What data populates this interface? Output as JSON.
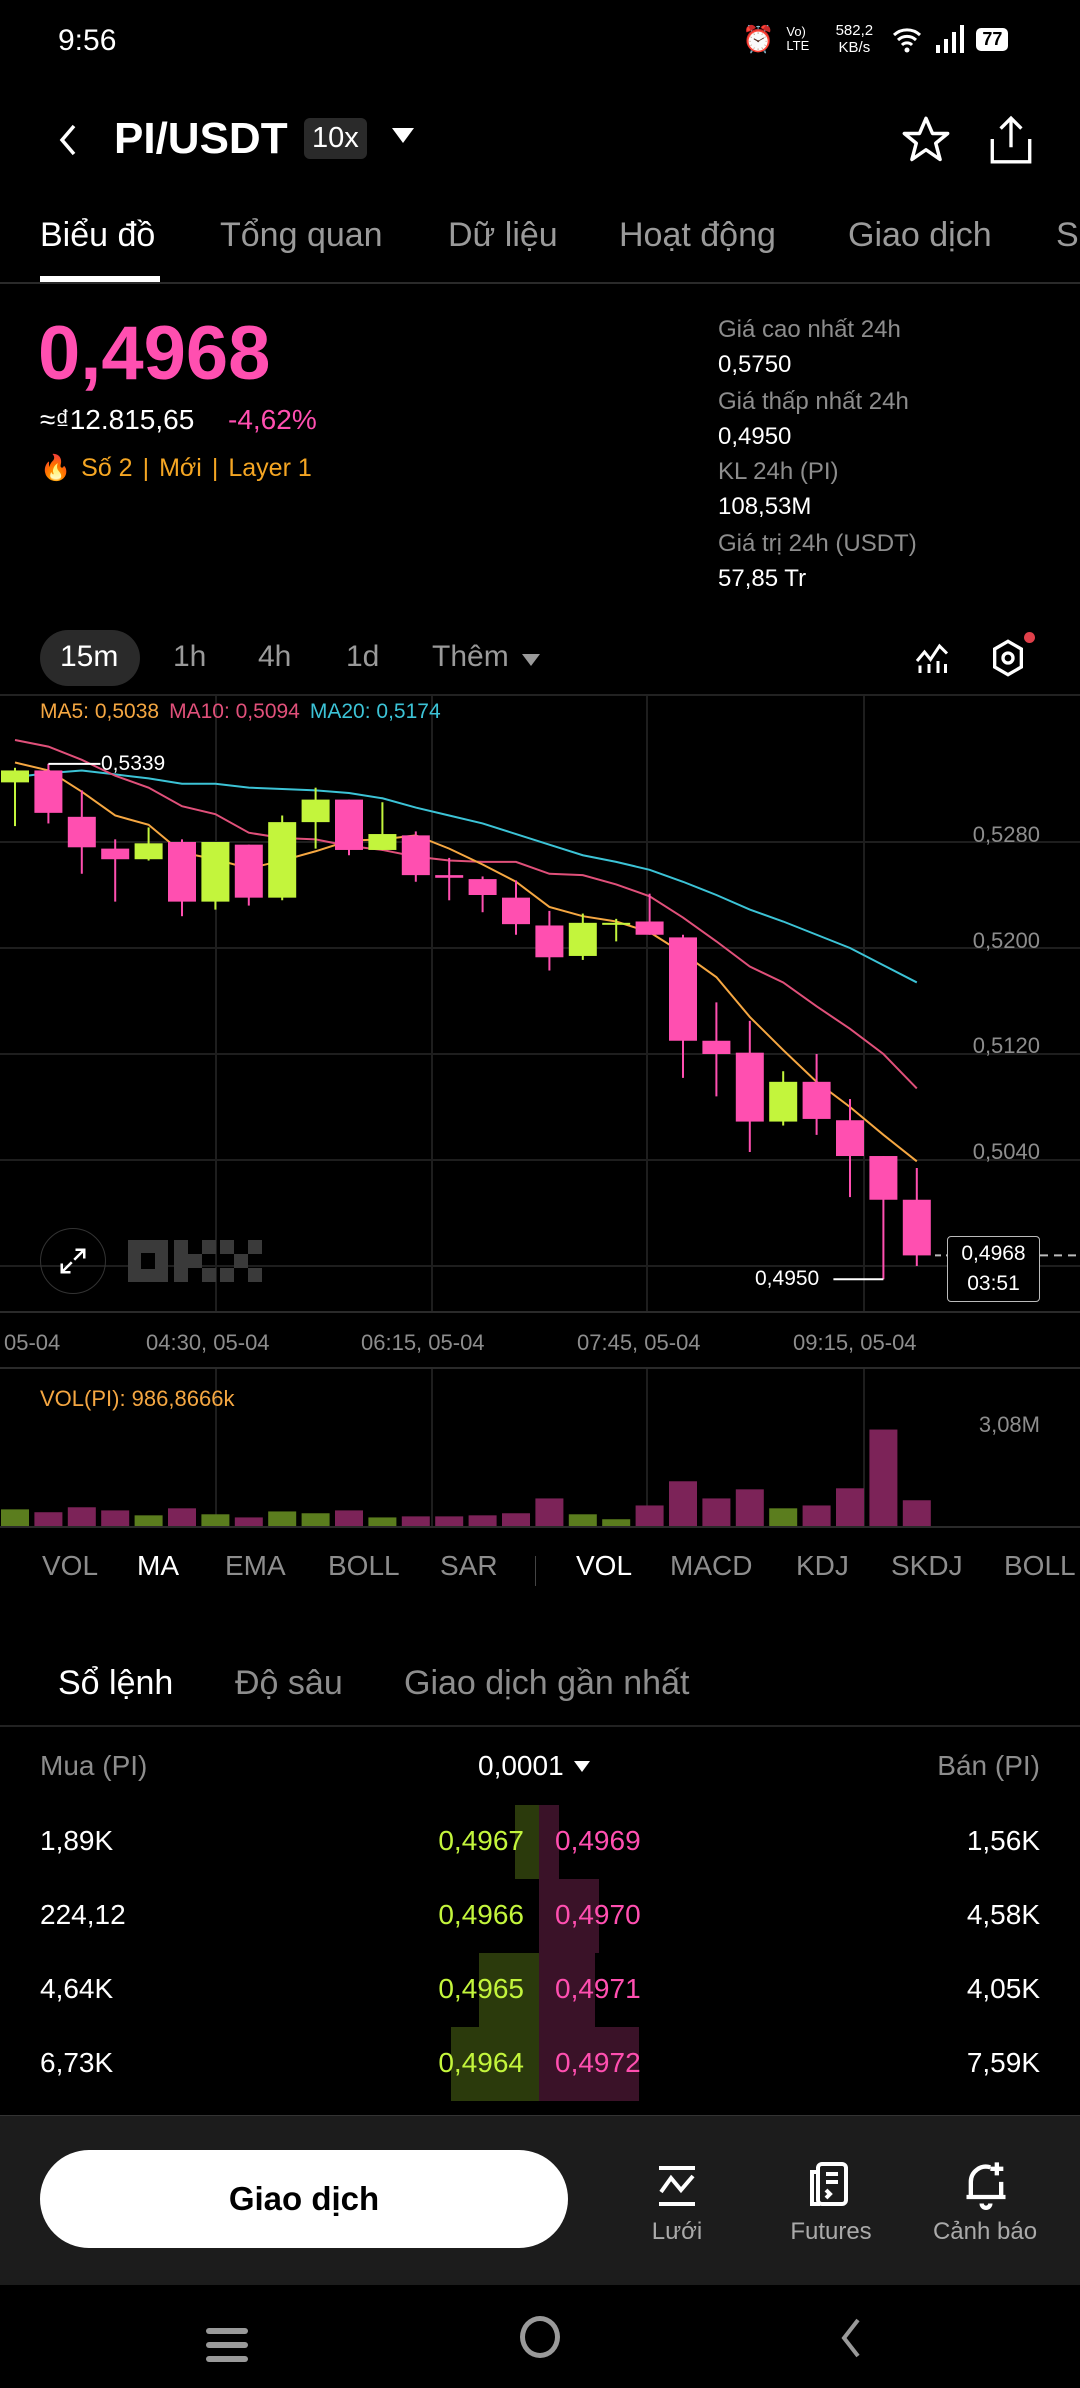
{
  "status_bar": {
    "time": "9:56",
    "net_speed": "582,2 KB/s",
    "network": "Vo) LTE",
    "battery": "77"
  },
  "header": {
    "pair": "PI/USDT",
    "leverage": "10x"
  },
  "tabs": [
    "Biểu đồ",
    "Tổng quan",
    "Dữ liệu",
    "Hoạt động",
    "Giao dịch",
    "S"
  ],
  "ticker": {
    "price": "0,4968",
    "fiat": "≈₫12.815,65",
    "change": "-4,62%",
    "tags": [
      "Số 2",
      "Mới",
      "Layer 1"
    ],
    "stats": [
      {
        "label": "Giá cao nhất 24h",
        "value": "0,5750"
      },
      {
        "label": "Giá thấp nhất 24h",
        "value": "0,4950"
      },
      {
        "label": "KL 24h (PI)",
        "value": "108,53M"
      },
      {
        "label": "Giá trị 24h (USDT)",
        "value": "57,85 Tr"
      }
    ]
  },
  "timeframes": {
    "items": [
      "15m",
      "1h",
      "4h",
      "1d"
    ],
    "more": "Thêm",
    "selected": "15m"
  },
  "colors": {
    "up": "#c3f53c",
    "down": "#ff4fb0",
    "ma5": "#f5a742",
    "ma10": "#e0507a",
    "ma20": "#3cc3d6",
    "vol_up": "#5b7d1e",
    "vol_down": "#7c2358"
  },
  "chart_data": {
    "type": "candlestick",
    "interval": "15m",
    "legend": {
      "ma5": "MA5: 0,5038",
      "ma10": "MA10: 0,5094",
      "ma20": "MA20: 0,5174"
    },
    "y_ticks": [
      "0,5280",
      "0,5200",
      "0,5120",
      "0,5040"
    ],
    "y_tick_values": [
      0.528,
      0.52,
      0.512,
      0.504
    ],
    "x_ticks": [
      "05-04",
      "04:30, 05-04",
      "06:15, 05-04",
      "07:45, 05-04",
      "09:15, 05-04"
    ],
    "high_label": "0,5339",
    "low_label": "0,4950",
    "last_price_label": "0,4968",
    "countdown": "03:51",
    "candles": [
      [
        0.5325,
        0.5334,
        0.5336,
        0.5292
      ],
      [
        0.5334,
        0.5302,
        0.5339,
        0.5294
      ],
      [
        0.5299,
        0.5276,
        0.5319,
        0.5256
      ],
      [
        0.5275,
        0.5267,
        0.5282,
        0.5235
      ],
      [
        0.5267,
        0.5279,
        0.5291,
        0.5266
      ],
      [
        0.528,
        0.5235,
        0.5282,
        0.5224
      ],
      [
        0.5235,
        0.528,
        0.528,
        0.5229
      ],
      [
        0.5278,
        0.5238,
        0.5278,
        0.5232
      ],
      [
        0.5238,
        0.5295,
        0.53,
        0.5236
      ],
      [
        0.5295,
        0.5312,
        0.5321,
        0.5275
      ],
      [
        0.5312,
        0.5274,
        0.5312,
        0.527
      ],
      [
        0.5274,
        0.5286,
        0.531,
        0.5274
      ],
      [
        0.5285,
        0.5255,
        0.5288,
        0.525
      ],
      [
        0.5255,
        0.5253,
        0.5268,
        0.5236
      ],
      [
        0.5252,
        0.524,
        0.5254,
        0.5227
      ],
      [
        0.5238,
        0.5218,
        0.5251,
        0.521
      ],
      [
        0.5217,
        0.5193,
        0.5228,
        0.5183
      ],
      [
        0.5194,
        0.5219,
        0.5226,
        0.5191
      ],
      [
        0.5218,
        0.5219,
        0.5222,
        0.5205
      ],
      [
        0.522,
        0.521,
        0.5241,
        0.521
      ],
      [
        0.5208,
        0.513,
        0.521,
        0.5102
      ],
      [
        0.513,
        0.512,
        0.5159,
        0.5088
      ],
      [
        0.5121,
        0.5069,
        0.5145,
        0.5046
      ],
      [
        0.5069,
        0.5099,
        0.5107,
        0.5066
      ],
      [
        0.5099,
        0.5071,
        0.512,
        0.5059
      ],
      [
        0.507,
        0.5043,
        0.5086,
        0.5012
      ],
      [
        0.5043,
        0.501,
        0.5043,
        0.495
      ],
      [
        0.501,
        0.4968,
        0.5034,
        0.496
      ]
    ],
    "ma5": [
      0.534,
      0.5334,
      0.5318,
      0.53,
      0.5293,
      0.5272,
      0.5267,
      0.526,
      0.5266,
      0.5273,
      0.5281,
      0.5282,
      0.5285,
      0.5275,
      0.5263,
      0.525,
      0.5231,
      0.5224,
      0.522,
      0.5212,
      0.5196,
      0.5178,
      0.5148,
      0.5123,
      0.5099,
      0.508,
      0.5059,
      0.5039
    ],
    "ma10": [
      0.5357,
      0.5352,
      0.5342,
      0.533,
      0.5321,
      0.5307,
      0.5301,
      0.5287,
      0.5283,
      0.5282,
      0.5277,
      0.5274,
      0.5269,
      0.5266,
      0.5265,
      0.5265,
      0.5256,
      0.5255,
      0.5248,
      0.5239,
      0.5223,
      0.5205,
      0.5186,
      0.5174,
      0.5156,
      0.5139,
      0.512,
      0.5094
    ],
    "ma20": [
      0.5329,
      0.5332,
      0.5334,
      0.5331,
      0.5328,
      0.5324,
      0.5324,
      0.5321,
      0.532,
      0.5319,
      0.5317,
      0.5313,
      0.5306,
      0.53,
      0.5294,
      0.5286,
      0.5278,
      0.527,
      0.5265,
      0.5259,
      0.525,
      0.524,
      0.5229,
      0.522,
      0.521,
      0.52,
      0.5187,
      0.5174
    ],
    "volume_label": "VOL(PI): 986,8666k",
    "volume_axis_label": "3,08M",
    "volume_m": [
      0.64,
      0.53,
      0.72,
      0.6,
      0.41,
      0.68,
      0.45,
      0.33,
      0.56,
      0.49,
      0.6,
      0.33,
      0.37,
      0.37,
      0.41,
      0.49,
      1.06,
      0.45,
      0.26,
      0.79,
      1.72,
      1.06,
      1.41,
      0.68,
      0.79,
      1.45,
      3.71,
      0.99
    ]
  },
  "indicators": {
    "main": [
      "VOL",
      "MA",
      "EMA",
      "BOLL",
      "SAR"
    ],
    "sub": [
      "VOL",
      "MACD",
      "KDJ",
      "SKDJ",
      "BOLL"
    ],
    "main_active": "MA",
    "sub_active": "VOL"
  },
  "orderbook": {
    "tabs": [
      "Sổ lệnh",
      "Độ sâu",
      "Giao dịch gần nhất"
    ],
    "buy_header": "Mua (PI)",
    "sell_header": "Bán (PI)",
    "precision": "0,0001",
    "rows": [
      {
        "buy_qty": "1,89K",
        "bid": "0,4967",
        "ask": "0,4969",
        "sell_qty": "1,56K",
        "bid_depth": 0.06,
        "ask_depth": 0.05
      },
      {
        "buy_qty": "224,12",
        "bid": "0,4966",
        "ask": "0,4970",
        "sell_qty": "4,58K",
        "bid_depth": 0.0,
        "ask_depth": 0.15
      },
      {
        "buy_qty": "4,64K",
        "bid": "0,4965",
        "ask": "0,4971",
        "sell_qty": "4,05K",
        "bid_depth": 0.15,
        "ask_depth": 0.14
      },
      {
        "buy_qty": "6,73K",
        "bid": "0,4964",
        "ask": "0,4972",
        "sell_qty": "7,59K",
        "bid_depth": 0.22,
        "ask_depth": 0.25
      }
    ]
  },
  "bottom": {
    "trade_button": "Giao dịch",
    "actions": [
      "Lưới",
      "Futures",
      "Cảnh báo"
    ]
  }
}
